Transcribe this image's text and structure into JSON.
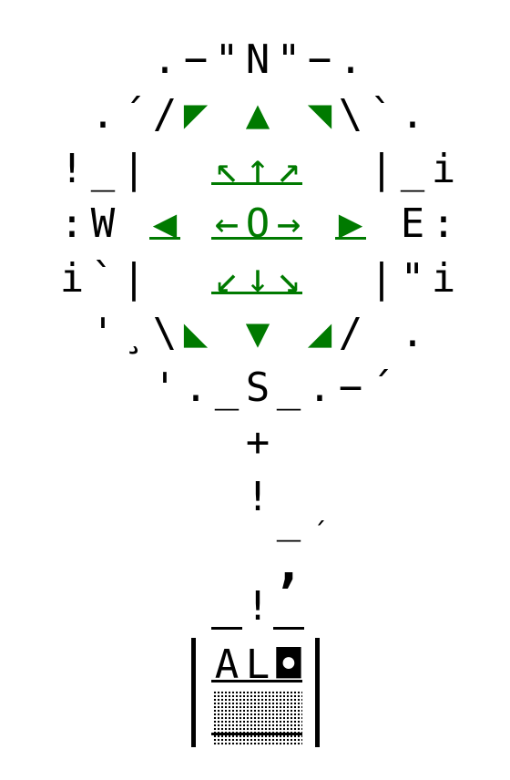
{
  "compass": {
    "rows": [
      [
        "",
        "",
        "",
        "",
        "",
        ".",
        "−",
        "\"",
        "N",
        "\"",
        "−",
        ".",
        "",
        "",
        ""
      ],
      [
        "",
        "",
        "",
        ".",
        "´",
        "/",
        "◤",
        "",
        "▲",
        "",
        "◥",
        "\\",
        "`",
        ".",
        ""
      ],
      [
        "",
        "",
        "!",
        "_",
        "|",
        "",
        "",
        "↖",
        "↑",
        "↗",
        "",
        "",
        "|",
        "_",
        "i"
      ],
      [
        "",
        "",
        ":",
        "W",
        "",
        "◀",
        "",
        "←",
        "O",
        "→",
        "",
        "▶",
        "",
        "E",
        ":"
      ],
      [
        "",
        "",
        "i",
        "`",
        "|",
        "",
        "",
        "↙",
        "↓",
        "↘",
        "",
        "",
        "|",
        "\"",
        "i"
      ],
      [
        "",
        "",
        "",
        "'",
        "¸",
        "\\",
        "◣",
        "",
        "▼",
        "",
        "◢",
        "/",
        "",
        ".",
        ""
      ],
      [
        "",
        "",
        "",
        "",
        "",
        "'",
        ".",
        "_",
        "S",
        "_",
        ".",
        "−",
        "´",
        "",
        ""
      ]
    ],
    "green_cells": [
      [
        1,
        6
      ],
      [
        1,
        8
      ],
      [
        1,
        10
      ],
      [
        2,
        7
      ],
      [
        2,
        8
      ],
      [
        2,
        9
      ],
      [
        3,
        5
      ],
      [
        3,
        7
      ],
      [
        3,
        8
      ],
      [
        3,
        9
      ],
      [
        3,
        11
      ],
      [
        4,
        7
      ],
      [
        4,
        8
      ],
      [
        4,
        9
      ],
      [
        5,
        6
      ],
      [
        5,
        8
      ],
      [
        5,
        10
      ]
    ]
  },
  "stem": {
    "plus": "+",
    "bang1": "!",
    "under1": "_",
    "accent1": "´",
    "comma": ",",
    "bang2": "!"
  },
  "box": {
    "label": "AL",
    "icon": "◘"
  },
  "colors": {
    "ink": "#000000",
    "accent": "#007a00",
    "background": "#ffffff"
  }
}
